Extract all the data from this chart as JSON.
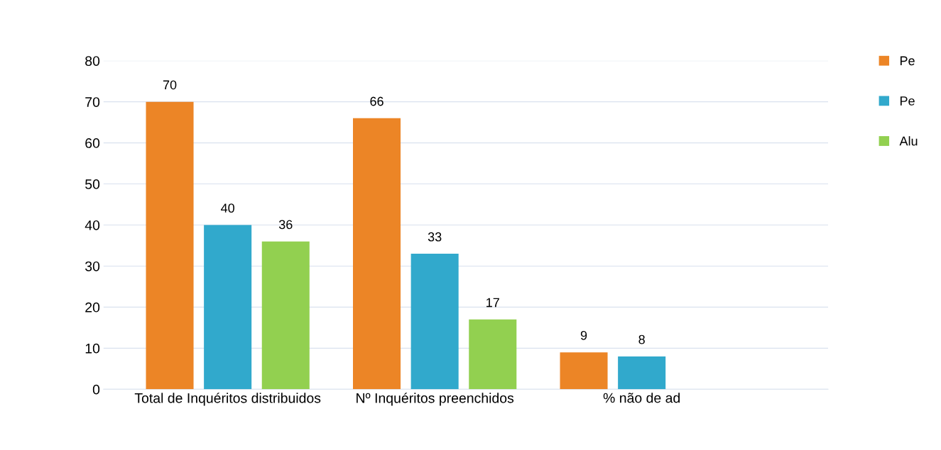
{
  "chart_data": {
    "type": "bar",
    "categories": [
      "Total de Inquéritos distribuidos",
      "Nº Inquéritos preenchidos",
      "% não de ad"
    ],
    "series": [
      {
        "name": "Pe",
        "color": "#ec8526",
        "values": [
          70,
          66,
          9
        ]
      },
      {
        "name": "Pe",
        "color": "#31a9cc",
        "values": [
          40,
          33,
          8
        ]
      },
      {
        "name": "Alu",
        "color": "#92d050",
        "values": [
          36,
          17,
          null
        ]
      }
    ],
    "ylim": [
      0,
      80
    ],
    "yticks": [
      0,
      10,
      20,
      30,
      40,
      50,
      60,
      70,
      80
    ],
    "grid": "y",
    "legend": "top right",
    "data_labels": true
  }
}
